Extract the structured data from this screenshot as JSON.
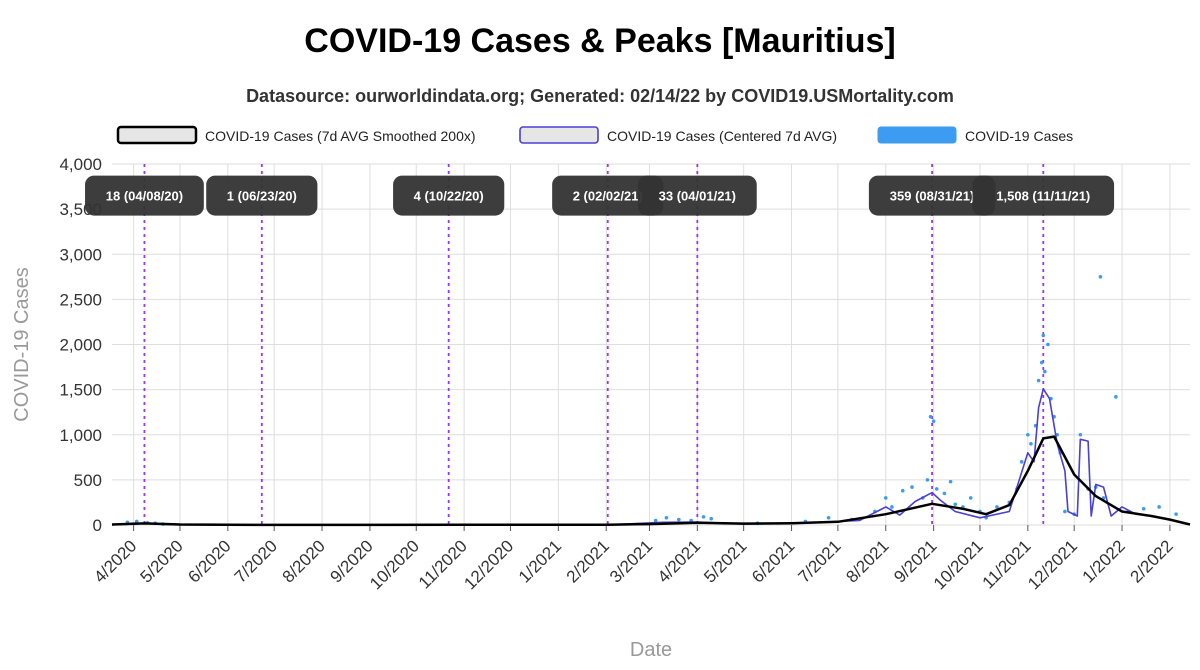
{
  "title": "COVID-19 Cases & Peaks [Mauritius]",
  "subtitle": "Datasource: ourworldindata.org; Generated: 02/14/22 by COVID19.USMortality.com",
  "chart_data": {
    "type": "line",
    "xlabel": "Date",
    "ylabel": "COVID-19 Cases",
    "ylim": [
      0,
      4000
    ],
    "yticks": [
      0,
      500,
      1000,
      1500,
      2000,
      2500,
      3000,
      3500,
      4000
    ],
    "ytick_labels": [
      "0",
      "500",
      "1,000",
      "1,500",
      "2,000",
      "2,500",
      "3,000",
      "3,500",
      "4,000"
    ],
    "xlim": [
      "2020-03-18",
      "2022-02-14"
    ],
    "xticks": [
      "2020-04-01",
      "2020-05-01",
      "2020-06-01",
      "2020-07-01",
      "2020-08-01",
      "2020-09-01",
      "2020-10-01",
      "2020-11-01",
      "2020-12-01",
      "2021-01-01",
      "2021-02-01",
      "2021-03-01",
      "2021-04-01",
      "2021-05-01",
      "2021-06-01",
      "2021-07-01",
      "2021-08-01",
      "2021-09-01",
      "2021-10-01",
      "2021-11-01",
      "2021-12-01",
      "2022-01-01",
      "2022-02-01"
    ],
    "xtick_labels": [
      "4/2020",
      "5/2020",
      "6/2020",
      "7/2020",
      "8/2020",
      "9/2020",
      "10/2020",
      "11/2020",
      "12/2020",
      "1/2021",
      "2/2021",
      "3/2021",
      "4/2021",
      "5/2021",
      "6/2021",
      "7/2021",
      "8/2021",
      "9/2021",
      "10/2021",
      "11/2021",
      "12/2021",
      "1/2022",
      "2/2022"
    ],
    "grid": true,
    "legend_position": "top",
    "series": [
      {
        "name": "COVID-19 Cases (7d AVG Smoothed 200x)",
        "style": "line",
        "color": "#000000",
        "points": [
          [
            "2020-03-18",
            5
          ],
          [
            "2020-04-08",
            18
          ],
          [
            "2020-05-01",
            5
          ],
          [
            "2020-06-01",
            2
          ],
          [
            "2020-07-01",
            1
          ],
          [
            "2020-09-01",
            1
          ],
          [
            "2020-11-01",
            2
          ],
          [
            "2021-01-01",
            2
          ],
          [
            "2021-02-02",
            3
          ],
          [
            "2021-03-01",
            10
          ],
          [
            "2021-04-01",
            25
          ],
          [
            "2021-05-01",
            15
          ],
          [
            "2021-06-01",
            20
          ],
          [
            "2021-07-01",
            35
          ],
          [
            "2021-08-01",
            120
          ],
          [
            "2021-08-31",
            235
          ],
          [
            "2021-09-20",
            180
          ],
          [
            "2021-10-05",
            120
          ],
          [
            "2021-10-20",
            220
          ],
          [
            "2021-11-01",
            600
          ],
          [
            "2021-11-11",
            960
          ],
          [
            "2021-11-18",
            980
          ],
          [
            "2021-12-01",
            560
          ],
          [
            "2021-12-15",
            320
          ],
          [
            "2022-01-01",
            150
          ],
          [
            "2022-01-20",
            100
          ],
          [
            "2022-02-01",
            60
          ],
          [
            "2022-02-14",
            5
          ]
        ]
      },
      {
        "name": "COVID-19 Cases (Centered 7d AVG)",
        "style": "line",
        "color": "#4a3fd6",
        "points": [
          [
            "2020-03-18",
            0
          ],
          [
            "2020-04-01",
            20
          ],
          [
            "2020-04-08",
            18
          ],
          [
            "2020-04-25",
            3
          ],
          [
            "2020-06-01",
            1
          ],
          [
            "2020-10-22",
            4
          ],
          [
            "2021-01-01",
            2
          ],
          [
            "2021-02-02",
            2
          ],
          [
            "2021-03-10",
            30
          ],
          [
            "2021-04-01",
            33
          ],
          [
            "2021-05-01",
            10
          ],
          [
            "2021-06-15",
            25
          ],
          [
            "2021-07-15",
            50
          ],
          [
            "2021-08-01",
            200
          ],
          [
            "2021-08-10",
            110
          ],
          [
            "2021-08-20",
            260
          ],
          [
            "2021-08-31",
            359
          ],
          [
            "2021-09-05",
            280
          ],
          [
            "2021-09-15",
            150
          ],
          [
            "2021-10-01",
            80
          ],
          [
            "2021-10-20",
            150
          ],
          [
            "2021-11-01",
            800
          ],
          [
            "2021-11-05",
            700
          ],
          [
            "2021-11-08",
            1300
          ],
          [
            "2021-11-11",
            1508
          ],
          [
            "2021-11-15",
            1400
          ],
          [
            "2021-11-20",
            900
          ],
          [
            "2021-11-25",
            600
          ],
          [
            "2021-11-27",
            150
          ],
          [
            "2021-12-03",
            100
          ],
          [
            "2021-12-05",
            950
          ],
          [
            "2021-12-10",
            930
          ],
          [
            "2021-12-12",
            100
          ],
          [
            "2021-12-15",
            450
          ],
          [
            "2021-12-20",
            420
          ],
          [
            "2021-12-25",
            100
          ],
          [
            "2022-01-01",
            200
          ],
          [
            "2022-01-10",
            120
          ],
          [
            "2022-01-20",
            100
          ],
          [
            "2022-02-01",
            60
          ],
          [
            "2022-02-14",
            5
          ]
        ]
      },
      {
        "name": "COVID-19 Cases",
        "style": "scatter",
        "color": "#3b9cf2",
        "points": [
          [
            "2020-03-28",
            30
          ],
          [
            "2020-04-03",
            40
          ],
          [
            "2020-04-10",
            25
          ],
          [
            "2020-04-15",
            20
          ],
          [
            "2020-04-20",
            10
          ],
          [
            "2021-03-05",
            50
          ],
          [
            "2021-03-12",
            80
          ],
          [
            "2021-03-20",
            60
          ],
          [
            "2021-03-28",
            50
          ],
          [
            "2021-04-05",
            90
          ],
          [
            "2021-04-10",
            70
          ],
          [
            "2021-05-10",
            20
          ],
          [
            "2021-06-10",
            40
          ],
          [
            "2021-06-25",
            80
          ],
          [
            "2021-07-10",
            60
          ],
          [
            "2021-07-25",
            150
          ],
          [
            "2021-08-01",
            300
          ],
          [
            "2021-08-05",
            200
          ],
          [
            "2021-08-12",
            380
          ],
          [
            "2021-08-18",
            420
          ],
          [
            "2021-08-25",
            300
          ],
          [
            "2021-08-28",
            500
          ],
          [
            "2021-09-03",
            400
          ],
          [
            "2021-09-08",
            350
          ],
          [
            "2021-09-12",
            480
          ],
          [
            "2021-08-30",
            1200
          ],
          [
            "2021-09-01",
            1150
          ],
          [
            "2021-09-15",
            230
          ],
          [
            "2021-09-20",
            200
          ],
          [
            "2021-09-25",
            300
          ],
          [
            "2021-10-01",
            150
          ],
          [
            "2021-10-05",
            80
          ],
          [
            "2021-10-12",
            200
          ],
          [
            "2021-10-20",
            250
          ],
          [
            "2021-10-25",
            400
          ],
          [
            "2021-10-28",
            700
          ],
          [
            "2021-11-01",
            1000
          ],
          [
            "2021-11-03",
            900
          ],
          [
            "2021-11-06",
            1100
          ],
          [
            "2021-11-08",
            1600
          ],
          [
            "2021-11-10",
            1800
          ],
          [
            "2021-11-11",
            2100
          ],
          [
            "2021-11-12",
            1700
          ],
          [
            "2021-11-14",
            2000
          ],
          [
            "2021-11-16",
            1400
          ],
          [
            "2021-11-18",
            1200
          ],
          [
            "2021-11-20",
            1000
          ],
          [
            "2021-11-22",
            800
          ],
          [
            "2021-11-25",
            150
          ],
          [
            "2021-12-01",
            120
          ],
          [
            "2021-12-05",
            1000
          ],
          [
            "2021-12-10",
            400
          ],
          [
            "2021-12-15",
            420
          ],
          [
            "2021-12-18",
            2750
          ],
          [
            "2021-12-20",
            300
          ],
          [
            "2021-12-28",
            1420
          ],
          [
            "2022-01-05",
            150
          ],
          [
            "2022-01-15",
            180
          ],
          [
            "2022-01-25",
            200
          ],
          [
            "2022-02-05",
            120
          ]
        ]
      }
    ],
    "peaks": [
      {
        "label": "18 (04/08/20)",
        "date": "2020-04-08",
        "value": 18
      },
      {
        "label": "1 (06/23/20)",
        "date": "2020-06-23",
        "value": 1
      },
      {
        "label": "4 (10/22/20)",
        "date": "2020-10-22",
        "value": 4
      },
      {
        "label": "2 (02/02/21)",
        "date": "2021-02-02",
        "value": 2
      },
      {
        "label": "33 (04/01/21)",
        "date": "2021-04-01",
        "value": 33
      },
      {
        "label": "359 (08/31/21)",
        "date": "2021-08-31",
        "value": 359
      },
      {
        "label": "1,508 (11/11/21)",
        "date": "2021-11-11",
        "value": 1508
      }
    ],
    "peak_line_color": "#9b30ff",
    "peak_label_y": 3650
  }
}
